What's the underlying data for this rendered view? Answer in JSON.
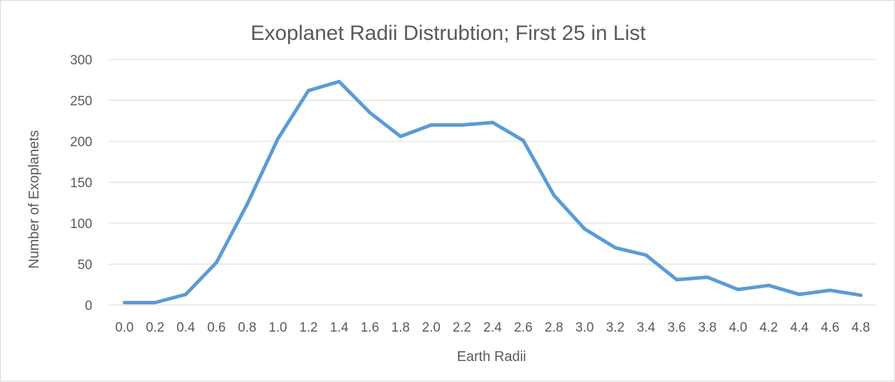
{
  "chart_data": {
    "type": "line",
    "title": "Exoplanet Radii Distrubtion; First 25 in List",
    "xlabel": "Earth Radii",
    "ylabel": "Number of Exoplanets",
    "ylim": [
      0,
      300
    ],
    "yticks": [
      0,
      50,
      100,
      150,
      200,
      250,
      300
    ],
    "grid": true,
    "legend": "none",
    "line_color": "#5b9bd5",
    "categories": [
      "0.0",
      "0.2",
      "0.4",
      "0.6",
      "0.8",
      "1.0",
      "1.2",
      "1.4",
      "1.6",
      "1.8",
      "2.0",
      "2.2",
      "2.4",
      "2.6",
      "2.8",
      "3.0",
      "3.2",
      "3.4",
      "3.6",
      "3.8",
      "4.0",
      "4.2",
      "4.4",
      "4.6",
      "4.8"
    ],
    "series": [
      {
        "values": [
          3,
          3,
          13,
          52,
          123,
          203,
          262,
          273,
          235,
          206,
          220,
          220,
          223,
          201,
          134,
          93,
          70,
          61,
          31,
          34,
          19,
          24,
          13,
          18,
          12
        ]
      }
    ]
  }
}
